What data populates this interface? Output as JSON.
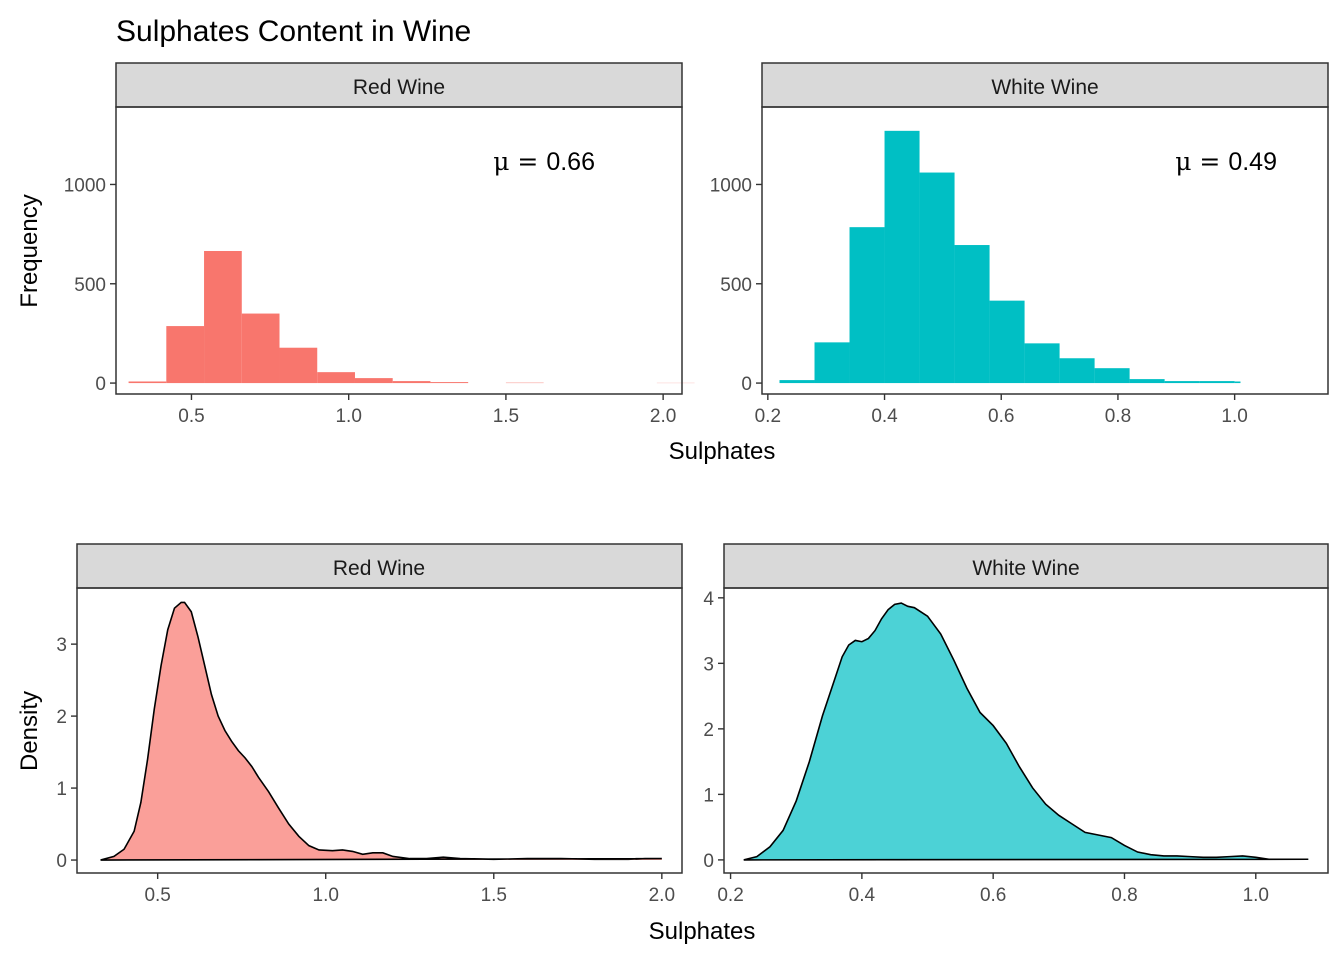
{
  "title": "Sulphates Content in Wine",
  "colors": {
    "red": "#F8766D",
    "white": "#00BFC4",
    "strip": "#D9D9D9",
    "panel_border": "#333333"
  },
  "top": {
    "ylabel": "Frequency",
    "xlabel": "Sulphates",
    "panels": [
      {
        "strip": "Red Wine",
        "mu_symbol": "μ",
        "mu_eq": " = ",
        "mu_value": "0.66"
      },
      {
        "strip": "White Wine",
        "mu_symbol": "μ",
        "mu_eq": " = ",
        "mu_value": "0.49"
      }
    ]
  },
  "bottom": {
    "ylabel": "Density",
    "xlabel": "Sulphates",
    "panels": [
      {
        "strip": "Red Wine"
      },
      {
        "strip": "White Wine"
      }
    ]
  },
  "chart_data": [
    {
      "type": "bar",
      "title": "Red Wine",
      "xlabel": "Sulphates",
      "ylabel": "Frequency",
      "xlim": [
        0.26,
        2.06
      ],
      "ylim": [
        -55,
        1390
      ],
      "xticks": [
        0.5,
        1.0,
        1.5,
        2.0
      ],
      "xtick_labels": [
        "0.5",
        "1.0",
        "1.5",
        "2.0"
      ],
      "yticks": [
        0,
        500,
        1000
      ],
      "ytick_labels": [
        "0",
        "500",
        "1000"
      ],
      "bins": [
        {
          "x0": 0.3,
          "x1": 0.42,
          "count": 8
        },
        {
          "x0": 0.42,
          "x1": 0.54,
          "count": 287
        },
        {
          "x0": 0.54,
          "x1": 0.66,
          "count": 665
        },
        {
          "x0": 0.66,
          "x1": 0.78,
          "count": 350
        },
        {
          "x0": 0.78,
          "x1": 0.9,
          "count": 178
        },
        {
          "x0": 0.9,
          "x1": 1.02,
          "count": 55
        },
        {
          "x0": 1.02,
          "x1": 1.14,
          "count": 25
        },
        {
          "x0": 1.14,
          "x1": 1.26,
          "count": 10
        },
        {
          "x0": 1.26,
          "x1": 1.38,
          "count": 5
        },
        {
          "x0": 1.38,
          "x1": 1.5,
          "count": 0
        },
        {
          "x0": 1.5,
          "x1": 1.62,
          "count": 2
        },
        {
          "x0": 1.62,
          "x1": 1.74,
          "count": 0
        },
        {
          "x0": 1.74,
          "x1": 1.86,
          "count": 0
        },
        {
          "x0": 1.86,
          "x1": 1.98,
          "count": 0
        },
        {
          "x0": 1.98,
          "x1": 2.1,
          "count": 1
        }
      ]
    },
    {
      "type": "bar",
      "title": "White Wine",
      "xlabel": "Sulphates",
      "ylabel": "Frequency",
      "xlim": [
        0.19,
        1.16
      ],
      "ylim": [
        -55,
        1390
      ],
      "xticks": [
        0.2,
        0.4,
        0.6,
        0.8,
        1.0
      ],
      "xtick_labels": [
        "0.2",
        "0.4",
        "0.6",
        "0.8",
        "1.0"
      ],
      "yticks": [
        0,
        500,
        1000
      ],
      "ytick_labels": [
        "0",
        "500",
        "1000"
      ],
      "bins": [
        {
          "x0": 0.22,
          "x1": 0.28,
          "count": 15
        },
        {
          "x0": 0.28,
          "x1": 0.34,
          "count": 205
        },
        {
          "x0": 0.34,
          "x1": 0.4,
          "count": 785
        },
        {
          "x0": 0.4,
          "x1": 0.46,
          "count": 1270
        },
        {
          "x0": 0.46,
          "x1": 0.52,
          "count": 1060
        },
        {
          "x0": 0.52,
          "x1": 0.58,
          "count": 695
        },
        {
          "x0": 0.58,
          "x1": 0.64,
          "count": 415
        },
        {
          "x0": 0.64,
          "x1": 0.7,
          "count": 200
        },
        {
          "x0": 0.7,
          "x1": 0.76,
          "count": 125
        },
        {
          "x0": 0.76,
          "x1": 0.82,
          "count": 75
        },
        {
          "x0": 0.82,
          "x1": 0.88,
          "count": 20
        },
        {
          "x0": 0.88,
          "x1": 0.94,
          "count": 10
        },
        {
          "x0": 0.94,
          "x1": 1.0,
          "count": 10
        },
        {
          "x0": 1.0,
          "x1": 1.01,
          "count": 8
        }
      ]
    },
    {
      "type": "area",
      "title": "Red Wine",
      "xlabel": "Sulphates",
      "ylabel": "Density",
      "xlim": [
        0.26,
        2.06
      ],
      "ylim": [
        -0.18,
        3.78
      ],
      "xticks": [
        0.5,
        1.0,
        1.5,
        2.0
      ],
      "xtick_labels": [
        "0.5",
        "1.0",
        "1.5",
        "2.0"
      ],
      "yticks": [
        0,
        1,
        2,
        3
      ],
      "ytick_labels": [
        "0",
        "1",
        "2",
        "3"
      ],
      "x": [
        0.33,
        0.37,
        0.4,
        0.43,
        0.45,
        0.47,
        0.49,
        0.51,
        0.53,
        0.55,
        0.57,
        0.58,
        0.6,
        0.62,
        0.64,
        0.66,
        0.68,
        0.7,
        0.72,
        0.74,
        0.76,
        0.78,
        0.8,
        0.83,
        0.86,
        0.89,
        0.92,
        0.95,
        0.98,
        1.02,
        1.05,
        1.08,
        1.11,
        1.14,
        1.17,
        1.2,
        1.25,
        1.3,
        1.35,
        1.4,
        1.5,
        1.6,
        1.7,
        1.8,
        1.9,
        1.95,
        2.0
      ],
      "y": [
        0.0,
        0.05,
        0.15,
        0.4,
        0.8,
        1.4,
        2.1,
        2.7,
        3.2,
        3.5,
        3.58,
        3.58,
        3.45,
        3.1,
        2.7,
        2.3,
        2.0,
        1.8,
        1.65,
        1.52,
        1.42,
        1.3,
        1.15,
        0.95,
        0.72,
        0.5,
        0.33,
        0.2,
        0.14,
        0.13,
        0.14,
        0.12,
        0.08,
        0.1,
        0.1,
        0.05,
        0.02,
        0.02,
        0.04,
        0.02,
        0.01,
        0.02,
        0.02,
        0.01,
        0.01,
        0.02,
        0.02
      ]
    },
    {
      "type": "area",
      "title": "White Wine",
      "xlabel": "Sulphates",
      "ylabel": "Density",
      "xlim": [
        0.19,
        1.11
      ],
      "ylim": [
        -0.2,
        4.15
      ],
      "xticks": [
        0.2,
        0.4,
        0.6,
        0.8,
        1.0
      ],
      "xtick_labels": [
        "0.2",
        "0.4",
        "0.6",
        "0.8",
        "1.0"
      ],
      "yticks": [
        0,
        1,
        2,
        3,
        4
      ],
      "ytick_labels": [
        "0",
        "1",
        "2",
        "3",
        "4"
      ],
      "x": [
        0.22,
        0.24,
        0.26,
        0.28,
        0.3,
        0.32,
        0.34,
        0.36,
        0.37,
        0.38,
        0.39,
        0.4,
        0.41,
        0.42,
        0.43,
        0.44,
        0.45,
        0.46,
        0.47,
        0.48,
        0.5,
        0.52,
        0.54,
        0.56,
        0.58,
        0.6,
        0.62,
        0.64,
        0.66,
        0.68,
        0.7,
        0.72,
        0.74,
        0.76,
        0.78,
        0.8,
        0.82,
        0.84,
        0.86,
        0.88,
        0.9,
        0.92,
        0.94,
        0.96,
        0.98,
        1.0,
        1.02,
        1.04,
        1.06,
        1.08
      ],
      "y": [
        0.0,
        0.05,
        0.2,
        0.45,
        0.9,
        1.5,
        2.2,
        2.8,
        3.1,
        3.28,
        3.35,
        3.33,
        3.38,
        3.5,
        3.68,
        3.82,
        3.9,
        3.92,
        3.87,
        3.85,
        3.72,
        3.45,
        3.05,
        2.62,
        2.25,
        2.05,
        1.78,
        1.42,
        1.1,
        0.85,
        0.68,
        0.55,
        0.42,
        0.38,
        0.34,
        0.22,
        0.12,
        0.08,
        0.06,
        0.06,
        0.05,
        0.04,
        0.04,
        0.05,
        0.06,
        0.04,
        0.01,
        0.01,
        0.01,
        0.01
      ]
    }
  ]
}
